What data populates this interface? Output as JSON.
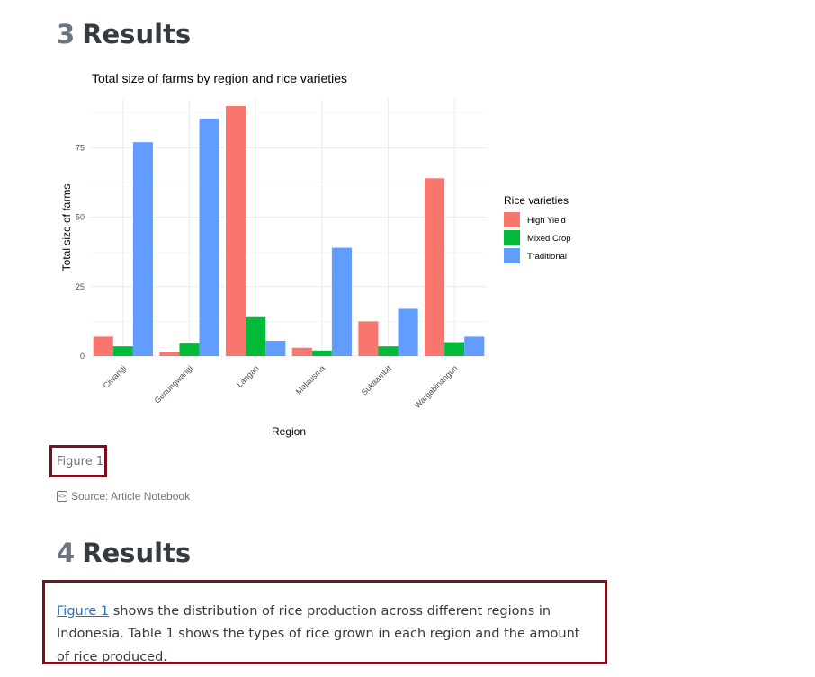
{
  "section3": {
    "number": "3",
    "title": "Results"
  },
  "section4": {
    "number": "4",
    "title": "Results"
  },
  "figure": {
    "caption": "Figure 1",
    "source": "Source: Article Notebook",
    "source_icon": "code-icon"
  },
  "paragraph": {
    "link_text": "Figure 1",
    "text": " shows the distribution of rice production across different regions in Indonesia. Table 1 shows the types of rice grown in each region and the amount of rice produced."
  },
  "colors": {
    "highlight_border": "#7b0f1c",
    "link": "#2f6fbd"
  },
  "chart_data": {
    "type": "bar",
    "title": "Total size of farms by region and rice varieties",
    "xlabel": "Region",
    "ylabel": "Total size of farms",
    "categories": [
      "Ciwangi",
      "Gunungwangi",
      "Langan",
      "Malausma",
      "Sukaambit",
      "Wargabinangun"
    ],
    "series": [
      {
        "name": "High Yield",
        "color": "#F8766D",
        "values": [
          7,
          1.5,
          90,
          3,
          12.5,
          64
        ]
      },
      {
        "name": "Mixed Crop",
        "color": "#00BA38",
        "values": [
          3.5,
          4.5,
          14,
          2,
          3.5,
          5
        ]
      },
      {
        "name": "Traditional",
        "color": "#619CFF",
        "values": [
          77,
          85.5,
          5.5,
          39,
          17,
          7
        ]
      }
    ],
    "ylim": [
      0,
      90
    ],
    "yticks": [
      0,
      25,
      50,
      75
    ],
    "legend_title": "Rice varieties",
    "legend_position": "right",
    "grid": true
  }
}
